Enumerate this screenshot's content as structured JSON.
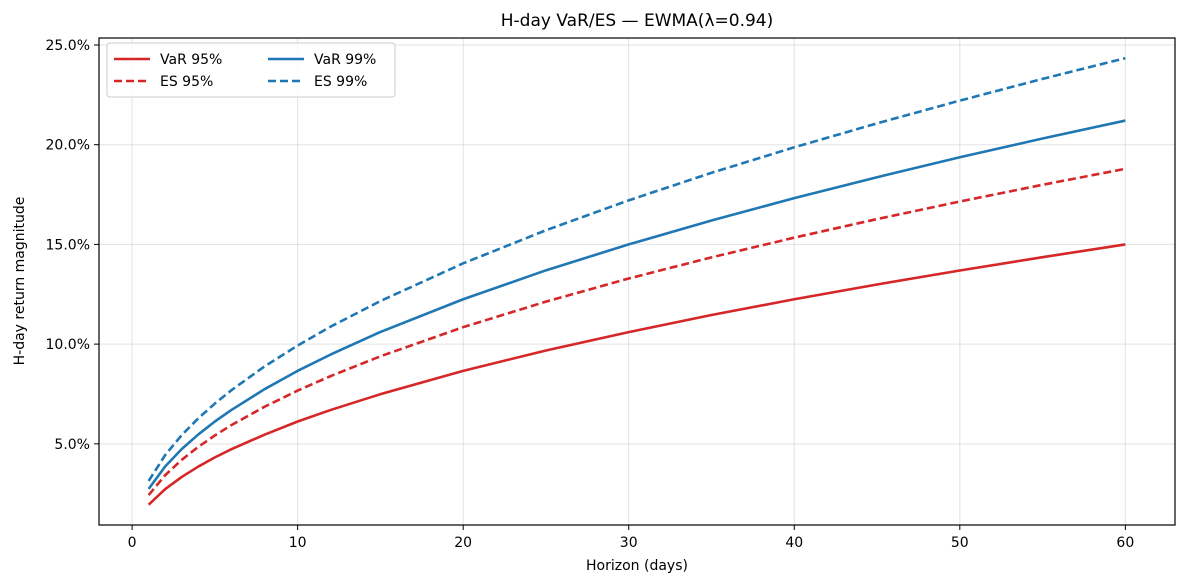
{
  "chart_data": {
    "type": "line",
    "title": "H-day VaR/ES — EWMA(λ=0.94)",
    "xlabel": "Horizon (days)",
    "ylabel": "H-day return magnitude",
    "xlim": [
      -2,
      63
    ],
    "ylim": [
      0.0093,
      0.2535
    ],
    "xticks": [
      0,
      10,
      20,
      30,
      40,
      50,
      60
    ],
    "yticks": [
      0.05,
      0.1,
      0.15,
      0.2,
      0.25
    ],
    "ytick_labels": [
      "5.0%",
      "10.0%",
      "15.0%",
      "20.0%",
      "25.0%"
    ],
    "grid": true,
    "legend": {
      "placement": "upper-left",
      "columns": 2
    },
    "x": [
      1,
      2,
      3,
      4,
      5,
      6,
      8,
      10,
      12,
      15,
      20,
      25,
      30,
      35,
      40,
      45,
      50,
      55,
      60
    ],
    "series": [
      {
        "name": "VaR 95%",
        "color": "#d62728",
        "style": "solid",
        "values": [
          0.0195,
          0.0273,
          0.0334,
          0.0386,
          0.0432,
          0.0473,
          0.0546,
          0.0612,
          0.067,
          0.0749,
          0.0866,
          0.0968,
          0.106,
          0.1146,
          0.1225,
          0.1299,
          0.1369,
          0.1436,
          0.15
        ]
      },
      {
        "name": "ES 95%",
        "color": "#d62728",
        "style": "dashed",
        "values": [
          0.0243,
          0.0343,
          0.042,
          0.0485,
          0.0542,
          0.0594,
          0.0686,
          0.0767,
          0.084,
          0.0939,
          0.1085,
          0.1213,
          0.1329,
          0.1435,
          0.1534,
          0.1627,
          0.1715,
          0.1799,
          0.1879
        ]
      },
      {
        "name": "VaR 99%",
        "color": "#1f77b4",
        "style": "solid",
        "values": [
          0.0274,
          0.0387,
          0.0474,
          0.0547,
          0.0612,
          0.067,
          0.0774,
          0.0866,
          0.0948,
          0.1061,
          0.1225,
          0.137,
          0.15,
          0.162,
          0.1732,
          0.1837,
          0.1937,
          0.2031,
          0.2121
        ]
      },
      {
        "name": "ES 99%",
        "color": "#1f77b4",
        "style": "dashed",
        "values": [
          0.0314,
          0.0444,
          0.0544,
          0.0628,
          0.0702,
          0.0769,
          0.0888,
          0.0993,
          0.1088,
          0.1216,
          0.1405,
          0.1571,
          0.1721,
          0.1859,
          0.1987,
          0.2107,
          0.2221,
          0.233,
          0.2434
        ]
      }
    ]
  }
}
